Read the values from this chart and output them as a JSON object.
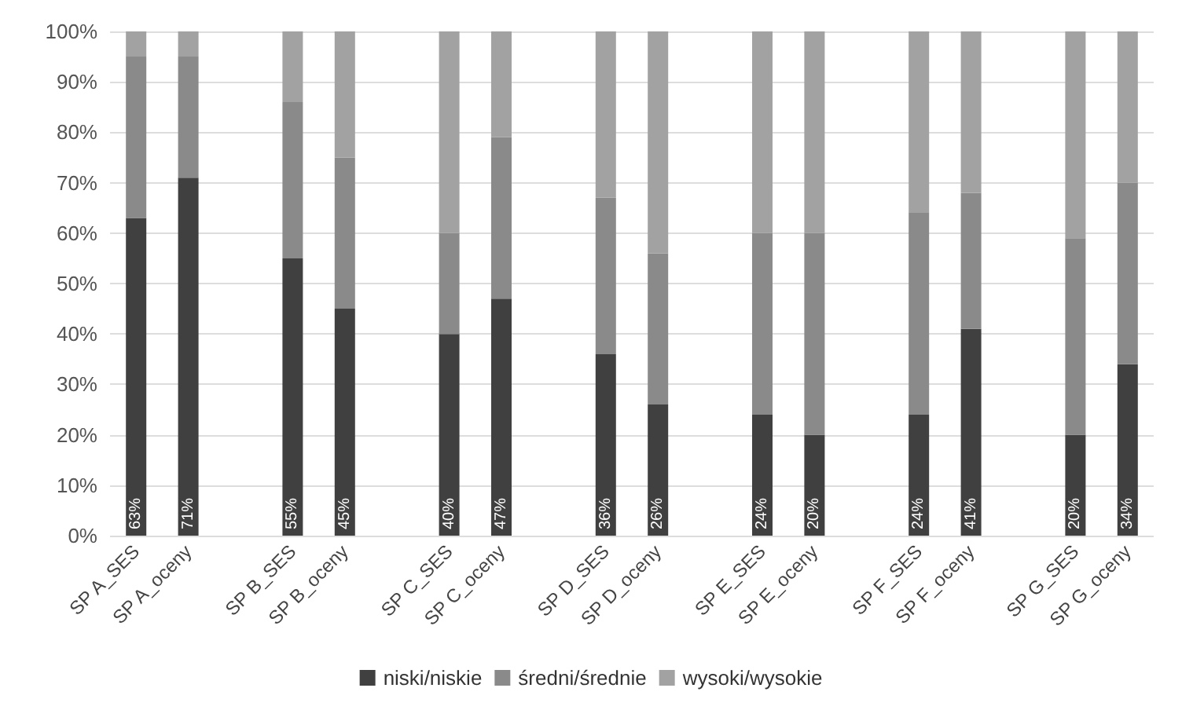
{
  "chart_data": {
    "type": "bar",
    "stacked": true,
    "categories": [
      "SP A_SES",
      "SP A_oceny",
      null,
      "SP B_SES",
      "SP B_oceny",
      null,
      "SP C_SES",
      "SP C_oceny",
      null,
      "SP D_SES",
      "SP D_oceny",
      null,
      "SP E_SES",
      "SP E_oceny",
      null,
      "SP F_SES",
      "SP F_oceny",
      null,
      "SP G_SES",
      "SP G_oceny"
    ],
    "series": [
      {
        "name": "niski/niskie",
        "color": "#404040",
        "values": [
          63,
          71,
          null,
          55,
          45,
          null,
          40,
          47,
          null,
          36,
          26,
          null,
          24,
          20,
          null,
          24,
          41,
          null,
          20,
          34
        ],
        "value_labels": [
          "63%",
          "71%",
          null,
          "55%",
          "45%",
          null,
          "40%",
          "47%",
          null,
          "36%",
          "26%",
          null,
          "24%",
          "20%",
          null,
          "24%",
          "41%",
          null,
          "20%",
          "34%"
        ]
      },
      {
        "name": "średni/średnie",
        "color": "#8a8a8a",
        "values": [
          32,
          24,
          null,
          31,
          30,
          null,
          20,
          32,
          null,
          31,
          30,
          null,
          36,
          40,
          null,
          40,
          27,
          null,
          39,
          36
        ]
      },
      {
        "name": "wysoki/wysokie",
        "color": "#a2a2a2",
        "values": [
          5,
          5,
          null,
          14,
          25,
          null,
          40,
          21,
          null,
          33,
          44,
          null,
          40,
          40,
          null,
          36,
          32,
          null,
          41,
          30
        ]
      }
    ],
    "ylim": [
      0,
      100
    ],
    "yticks": [
      {
        "value": 0,
        "label": "0%"
      },
      {
        "value": 10,
        "label": "10%"
      },
      {
        "value": 20,
        "label": "20%"
      },
      {
        "value": 30,
        "label": "30%"
      },
      {
        "value": 40,
        "label": "40%"
      },
      {
        "value": 50,
        "label": "50%"
      },
      {
        "value": 60,
        "label": "60%"
      },
      {
        "value": 70,
        "label": "70%"
      },
      {
        "value": 80,
        "label": "80%"
      },
      {
        "value": 90,
        "label": "90%"
      },
      {
        "value": 100,
        "label": "100%"
      }
    ],
    "grid": "y",
    "legend": "bottom"
  }
}
